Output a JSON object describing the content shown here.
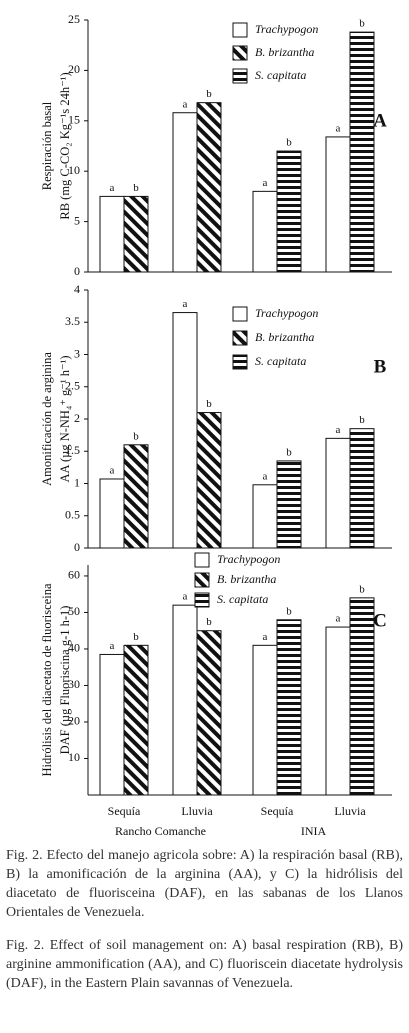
{
  "chart_data": [
    {
      "type": "bar",
      "panel": "A",
      "ylabel": [
        "Respiración basal",
        "RB (mg C-CO₂ Kg⁻¹s 24h⁻¹)"
      ],
      "ylim": [
        0,
        25
      ],
      "yticks": [
        0,
        5,
        10,
        15,
        20,
        25
      ],
      "series": [
        {
          "name": "Trachypogon",
          "pattern": "none",
          "values": [
            7.5,
            15.8,
            8,
            13.4
          ],
          "letters": [
            "a",
            "a",
            "a",
            "a"
          ]
        },
        {
          "name": "B. brizantha",
          "pattern": "diagonal",
          "values": [
            7.5,
            16.8,
            null,
            null
          ],
          "letters": [
            "b",
            "b",
            null,
            null
          ]
        },
        {
          "name": "S. capitata",
          "pattern": "horizontal",
          "values": [
            null,
            null,
            12,
            23.8
          ],
          "letters": [
            null,
            null,
            "b",
            "b"
          ]
        }
      ]
    },
    {
      "type": "bar",
      "panel": "B",
      "ylabel": [
        "Amonificación de arginina",
        "AA (µg N-NH₄⁺ g⁻¹ h⁻¹)"
      ],
      "ylim": [
        0,
        4
      ],
      "yticks": [
        0,
        0.5,
        1,
        1.5,
        2,
        2.5,
        3,
        3.5,
        4
      ],
      "series": [
        {
          "name": "Trachypogon",
          "pattern": "none",
          "values": [
            1.07,
            3.65,
            0.98,
            1.7
          ],
          "letters": [
            "a",
            "a",
            "a",
            "a"
          ]
        },
        {
          "name": "B. brizantha",
          "pattern": "diagonal",
          "values": [
            1.6,
            2.1,
            null,
            null
          ],
          "letters": [
            "b",
            "b",
            null,
            null
          ]
        },
        {
          "name": "S. capitata",
          "pattern": "horizontal",
          "values": [
            null,
            null,
            1.35,
            1.85
          ],
          "letters": [
            null,
            null,
            "b",
            "b"
          ]
        }
      ]
    },
    {
      "type": "bar",
      "panel": "C",
      "ylabel": [
        "Hidrólisis del diacetato de fluorisceina",
        "DAF (µg Fluoriscina g-1  h-1)"
      ],
      "ylim": [
        0,
        63
      ],
      "yticks": [
        10,
        20,
        30,
        40,
        50,
        60
      ],
      "categories": [
        "Sequía",
        "Lluvia",
        "Sequía",
        "Lluvia"
      ],
      "groups": [
        "Rancho Comanche",
        "INIA"
      ],
      "series": [
        {
          "name": "Trachypogon",
          "pattern": "none",
          "values": [
            38.5,
            52,
            41,
            46
          ],
          "letters": [
            "a",
            "a",
            "a",
            "a"
          ]
        },
        {
          "name": "B. brizantha",
          "pattern": "diagonal",
          "values": [
            41,
            45,
            null,
            null
          ],
          "letters": [
            "b",
            "b",
            null,
            null
          ]
        },
        {
          "name": "S. capitata",
          "pattern": "horizontal",
          "values": [
            null,
            null,
            48,
            54
          ],
          "letters": [
            null,
            null,
            "b",
            "b"
          ]
        }
      ]
    }
  ],
  "captions": [
    "Fig. 2. Efecto del manejo agricola sobre: A) la respiración basal (RB), B) la amonificación de la arginina (AA), y C) la hidrólisis del diacetato de fluorisceina (DAF), en las sabanas de los Llanos Orientales de Venezuela.",
    "Fig. 2. Effect of soil management on: A) basal respiration (RB), B) arginine ammonification (AA), and C) fluoriscein diacetate hydrolysis (DAF), in the Eastern Plain savannas of Venezuela."
  ]
}
